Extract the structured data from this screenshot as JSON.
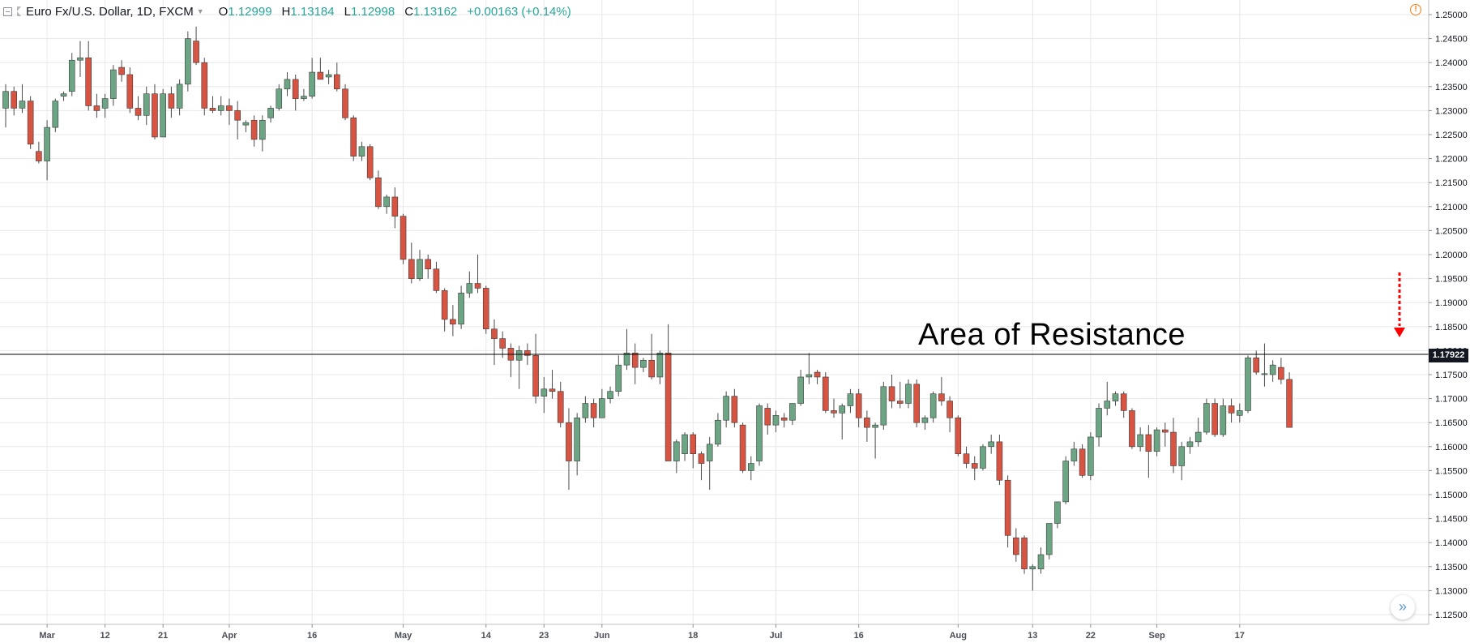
{
  "header": {
    "title": "Euro Fx/U.S. Dollar, 1D, FXCM",
    "open_key": "O",
    "open_val": "1.12999",
    "high_key": "H",
    "high_val": "1.13184",
    "low_key": "L",
    "low_val": "1.12998",
    "close_key": "C",
    "close_val": "1.13162",
    "change": "+0.00163 (+0.14%)"
  },
  "colors": {
    "up": "#6ba583",
    "down": "#d75442",
    "wick": "#4a4a4a",
    "grid": "#e8e8e8",
    "annotation_arrow": "#ff0000"
  },
  "chart_data": {
    "type": "candlestick",
    "title": "Euro Fx/U.S. Dollar, 1D, FXCM",
    "ylim": [
      1.125,
      1.25
    ],
    "y_ticks": [
      "1.25000",
      "1.24500",
      "1.24000",
      "1.23500",
      "1.23000",
      "1.22500",
      "1.22000",
      "1.21500",
      "1.21000",
      "1.20500",
      "1.20000",
      "1.19500",
      "1.19000",
      "1.18500",
      "1.18000",
      "1.17500",
      "1.17000",
      "1.16500",
      "1.16000",
      "1.15500",
      "1.15000",
      "1.14500",
      "1.14000",
      "1.13500",
      "1.13000",
      "1.12500"
    ],
    "x_ticks": [
      {
        "label": "Mar",
        "index": 5
      },
      {
        "label": "12",
        "index": 12
      },
      {
        "label": "21",
        "index": 19
      },
      {
        "label": "Apr",
        "index": 27
      },
      {
        "label": "16",
        "index": 37
      },
      {
        "label": "May",
        "index": 48
      },
      {
        "label": "14",
        "index": 58
      },
      {
        "label": "23",
        "index": 65
      },
      {
        "label": "Jun",
        "index": 72
      },
      {
        "label": "18",
        "index": 83
      },
      {
        "label": "Jul",
        "index": 93
      },
      {
        "label": "16",
        "index": 103
      },
      {
        "label": "Aug",
        "index": 115
      },
      {
        "label": "13",
        "index": 124
      },
      {
        "label": "22",
        "index": 131
      },
      {
        "label": "Sep",
        "index": 139
      },
      {
        "label": "17",
        "index": 149
      }
    ],
    "resistance_level": 1.17922,
    "resistance_label": "1.17922",
    "annotation": "Area of Resistance",
    "candles": [
      {
        "o": 1.2305,
        "h": 1.2355,
        "l": 1.2265,
        "c": 1.234
      },
      {
        "o": 1.234,
        "h": 1.235,
        "l": 1.229,
        "c": 1.2305
      },
      {
        "o": 1.2305,
        "h": 1.2355,
        "l": 1.2295,
        "c": 1.232
      },
      {
        "o": 1.232,
        "h": 1.233,
        "l": 1.222,
        "c": 1.223
      },
      {
        "o": 1.2215,
        "h": 1.2235,
        "l": 1.219,
        "c": 1.2195
      },
      {
        "o": 1.2195,
        "h": 1.228,
        "l": 1.2155,
        "c": 1.2265
      },
      {
        "o": 1.2265,
        "h": 1.2325,
        "l": 1.2255,
        "c": 1.232
      },
      {
        "o": 1.233,
        "h": 1.234,
        "l": 1.232,
        "c": 1.2335
      },
      {
        "o": 1.234,
        "h": 1.242,
        "l": 1.233,
        "c": 1.2405
      },
      {
        "o": 1.2405,
        "h": 1.2445,
        "l": 1.237,
        "c": 1.241
      },
      {
        "o": 1.241,
        "h": 1.2445,
        "l": 1.23,
        "c": 1.231
      },
      {
        "o": 1.231,
        "h": 1.2335,
        "l": 1.2285,
        "c": 1.23
      },
      {
        "o": 1.2305,
        "h": 1.2335,
        "l": 1.2285,
        "c": 1.2325
      },
      {
        "o": 1.2325,
        "h": 1.2395,
        "l": 1.231,
        "c": 1.2385
      },
      {
        "o": 1.239,
        "h": 1.2405,
        "l": 1.236,
        "c": 1.2375
      },
      {
        "o": 1.2375,
        "h": 1.239,
        "l": 1.2295,
        "c": 1.2305
      },
      {
        "o": 1.2305,
        "h": 1.233,
        "l": 1.228,
        "c": 1.229
      },
      {
        "o": 1.229,
        "h": 1.235,
        "l": 1.227,
        "c": 1.2335
      },
      {
        "o": 1.2335,
        "h": 1.2355,
        "l": 1.224,
        "c": 1.2245
      },
      {
        "o": 1.2245,
        "h": 1.2345,
        "l": 1.2245,
        "c": 1.2335
      },
      {
        "o": 1.2335,
        "h": 1.235,
        "l": 1.2285,
        "c": 1.2305
      },
      {
        "o": 1.2305,
        "h": 1.2365,
        "l": 1.229,
        "c": 1.2355
      },
      {
        "o": 1.2355,
        "h": 1.2465,
        "l": 1.234,
        "c": 1.245
      },
      {
        "o": 1.2445,
        "h": 1.2475,
        "l": 1.2395,
        "c": 1.24
      },
      {
        "o": 1.24,
        "h": 1.241,
        "l": 1.229,
        "c": 1.2305
      },
      {
        "o": 1.2305,
        "h": 1.233,
        "l": 1.2295,
        "c": 1.23
      },
      {
        "o": 1.23,
        "h": 1.233,
        "l": 1.229,
        "c": 1.231
      },
      {
        "o": 1.231,
        "h": 1.2325,
        "l": 1.227,
        "c": 1.23
      },
      {
        "o": 1.23,
        "h": 1.232,
        "l": 1.224,
        "c": 1.228
      },
      {
        "o": 1.227,
        "h": 1.228,
        "l": 1.2255,
        "c": 1.2275
      },
      {
        "o": 1.228,
        "h": 1.229,
        "l": 1.2225,
        "c": 1.224
      },
      {
        "o": 1.224,
        "h": 1.229,
        "l": 1.2215,
        "c": 1.228
      },
      {
        "o": 1.2285,
        "h": 1.231,
        "l": 1.2275,
        "c": 1.2305
      },
      {
        "o": 1.2305,
        "h": 1.2355,
        "l": 1.23,
        "c": 1.2345
      },
      {
        "o": 1.2345,
        "h": 1.238,
        "l": 1.233,
        "c": 1.2365
      },
      {
        "o": 1.2365,
        "h": 1.2375,
        "l": 1.23,
        "c": 1.2325
      },
      {
        "o": 1.2325,
        "h": 1.2345,
        "l": 1.232,
        "c": 1.233
      },
      {
        "o": 1.233,
        "h": 1.241,
        "l": 1.2325,
        "c": 1.238
      },
      {
        "o": 1.238,
        "h": 1.241,
        "l": 1.237,
        "c": 1.2365
      },
      {
        "o": 1.237,
        "h": 1.2385,
        "l": 1.2355,
        "c": 1.2375
      },
      {
        "o": 1.2375,
        "h": 1.24,
        "l": 1.234,
        "c": 1.2345
      },
      {
        "o": 1.2345,
        "h": 1.2355,
        "l": 1.228,
        "c": 1.2285
      },
      {
        "o": 1.2285,
        "h": 1.229,
        "l": 1.2195,
        "c": 1.2205
      },
      {
        "o": 1.2205,
        "h": 1.2235,
        "l": 1.2195,
        "c": 1.2225
      },
      {
        "o": 1.2225,
        "h": 1.223,
        "l": 1.2155,
        "c": 1.216
      },
      {
        "o": 1.216,
        "h": 1.2175,
        "l": 1.2095,
        "c": 1.21
      },
      {
        "o": 1.21,
        "h": 1.2125,
        "l": 1.2085,
        "c": 1.212
      },
      {
        "o": 1.212,
        "h": 1.214,
        "l": 1.2055,
        "c": 1.208
      },
      {
        "o": 1.208,
        "h": 1.2085,
        "l": 1.198,
        "c": 1.199
      },
      {
        "o": 1.199,
        "h": 1.2025,
        "l": 1.194,
        "c": 1.195
      },
      {
        "o": 1.195,
        "h": 1.201,
        "l": 1.1945,
        "c": 1.199
      },
      {
        "o": 1.199,
        "h": 1.2,
        "l": 1.195,
        "c": 1.197
      },
      {
        "o": 1.197,
        "h": 1.1985,
        "l": 1.192,
        "c": 1.1925
      },
      {
        "o": 1.1925,
        "h": 1.193,
        "l": 1.184,
        "c": 1.1865
      },
      {
        "o": 1.1865,
        "h": 1.1895,
        "l": 1.183,
        "c": 1.1855
      },
      {
        "o": 1.1855,
        "h": 1.1935,
        "l": 1.1845,
        "c": 1.192
      },
      {
        "o": 1.192,
        "h": 1.1965,
        "l": 1.191,
        "c": 1.194
      },
      {
        "o": 1.194,
        "h": 1.2,
        "l": 1.192,
        "c": 1.193
      },
      {
        "o": 1.193,
        "h": 1.1935,
        "l": 1.1835,
        "c": 1.1845
      },
      {
        "o": 1.1845,
        "h": 1.1865,
        "l": 1.177,
        "c": 1.1825
      },
      {
        "o": 1.1825,
        "h": 1.184,
        "l": 1.1785,
        "c": 1.1805
      },
      {
        "o": 1.1805,
        "h": 1.1815,
        "l": 1.1745,
        "c": 1.178
      },
      {
        "o": 1.178,
        "h": 1.181,
        "l": 1.172,
        "c": 1.18
      },
      {
        "o": 1.18,
        "h": 1.1815,
        "l": 1.177,
        "c": 1.179
      },
      {
        "o": 1.179,
        "h": 1.1835,
        "l": 1.169,
        "c": 1.1705
      },
      {
        "o": 1.1705,
        "h": 1.1745,
        "l": 1.167,
        "c": 1.172
      },
      {
        "o": 1.172,
        "h": 1.176,
        "l": 1.17,
        "c": 1.1715
      },
      {
        "o": 1.1715,
        "h": 1.1735,
        "l": 1.164,
        "c": 1.165
      },
      {
        "o": 1.165,
        "h": 1.168,
        "l": 1.151,
        "c": 1.157
      },
      {
        "o": 1.157,
        "h": 1.167,
        "l": 1.154,
        "c": 1.166
      },
      {
        "o": 1.166,
        "h": 1.1705,
        "l": 1.165,
        "c": 1.169
      },
      {
        "o": 1.169,
        "h": 1.17,
        "l": 1.164,
        "c": 1.166
      },
      {
        "o": 1.166,
        "h": 1.172,
        "l": 1.166,
        "c": 1.17
      },
      {
        "o": 1.17,
        "h": 1.1725,
        "l": 1.169,
        "c": 1.1715
      },
      {
        "o": 1.1715,
        "h": 1.179,
        "l": 1.1705,
        "c": 1.177
      },
      {
        "o": 1.177,
        "h": 1.1845,
        "l": 1.176,
        "c": 1.1795
      },
      {
        "o": 1.1795,
        "h": 1.1815,
        "l": 1.173,
        "c": 1.1765
      },
      {
        "o": 1.1765,
        "h": 1.1785,
        "l": 1.1755,
        "c": 1.178
      },
      {
        "o": 1.178,
        "h": 1.1835,
        "l": 1.174,
        "c": 1.1745
      },
      {
        "o": 1.1745,
        "h": 1.18,
        "l": 1.173,
        "c": 1.1795
      },
      {
        "o": 1.1795,
        "h": 1.1855,
        "l": 1.157,
        "c": 1.157
      },
      {
        "o": 1.157,
        "h": 1.1615,
        "l": 1.1545,
        "c": 1.161
      },
      {
        "o": 1.1585,
        "h": 1.163,
        "l": 1.157,
        "c": 1.1625
      },
      {
        "o": 1.1625,
        "h": 1.163,
        "l": 1.1555,
        "c": 1.1585
      },
      {
        "o": 1.1585,
        "h": 1.159,
        "l": 1.153,
        "c": 1.1565
      },
      {
        "o": 1.157,
        "h": 1.162,
        "l": 1.151,
        "c": 1.1605
      },
      {
        "o": 1.1605,
        "h": 1.167,
        "l": 1.16,
        "c": 1.1655
      },
      {
        "o": 1.1655,
        "h": 1.1715,
        "l": 1.164,
        "c": 1.1705
      },
      {
        "o": 1.1705,
        "h": 1.172,
        "l": 1.164,
        "c": 1.165
      },
      {
        "o": 1.1645,
        "h": 1.165,
        "l": 1.1545,
        "c": 1.155
      },
      {
        "o": 1.155,
        "h": 1.158,
        "l": 1.153,
        "c": 1.1565
      },
      {
        "o": 1.157,
        "h": 1.169,
        "l": 1.156,
        "c": 1.1685
      },
      {
        "o": 1.168,
        "h": 1.169,
        "l": 1.1625,
        "c": 1.1645
      },
      {
        "o": 1.1645,
        "h": 1.1675,
        "l": 1.163,
        "c": 1.1665
      },
      {
        "o": 1.166,
        "h": 1.167,
        "l": 1.164,
        "c": 1.1655
      },
      {
        "o": 1.1655,
        "h": 1.169,
        "l": 1.1645,
        "c": 1.169
      },
      {
        "o": 1.169,
        "h": 1.176,
        "l": 1.1685,
        "c": 1.1745
      },
      {
        "o": 1.1745,
        "h": 1.1795,
        "l": 1.173,
        "c": 1.175
      },
      {
        "o": 1.1755,
        "h": 1.176,
        "l": 1.173,
        "c": 1.1745
      },
      {
        "o": 1.1745,
        "h": 1.1755,
        "l": 1.167,
        "c": 1.1675
      },
      {
        "o": 1.1675,
        "h": 1.17,
        "l": 1.166,
        "c": 1.167
      },
      {
        "o": 1.167,
        "h": 1.169,
        "l": 1.1615,
        "c": 1.1685
      },
      {
        "o": 1.1685,
        "h": 1.172,
        "l": 1.167,
        "c": 1.171
      },
      {
        "o": 1.171,
        "h": 1.172,
        "l": 1.164,
        "c": 1.166
      },
      {
        "o": 1.166,
        "h": 1.1675,
        "l": 1.161,
        "c": 1.164
      },
      {
        "o": 1.164,
        "h": 1.165,
        "l": 1.1575,
        "c": 1.1645
      },
      {
        "o": 1.1645,
        "h": 1.1735,
        "l": 1.1635,
        "c": 1.1725
      },
      {
        "o": 1.1725,
        "h": 1.175,
        "l": 1.168,
        "c": 1.1695
      },
      {
        "o": 1.1695,
        "h": 1.1735,
        "l": 1.168,
        "c": 1.169
      },
      {
        "o": 1.169,
        "h": 1.174,
        "l": 1.168,
        "c": 1.173
      },
      {
        "o": 1.173,
        "h": 1.174,
        "l": 1.164,
        "c": 1.165
      },
      {
        "o": 1.165,
        "h": 1.1665,
        "l": 1.1635,
        "c": 1.166
      },
      {
        "o": 1.166,
        "h": 1.1715,
        "l": 1.165,
        "c": 1.171
      },
      {
        "o": 1.171,
        "h": 1.1745,
        "l": 1.1685,
        "c": 1.1695
      },
      {
        "o": 1.1695,
        "h": 1.1705,
        "l": 1.163,
        "c": 1.166
      },
      {
        "o": 1.166,
        "h": 1.1665,
        "l": 1.158,
        "c": 1.1585
      },
      {
        "o": 1.1585,
        "h": 1.16,
        "l": 1.1555,
        "c": 1.1565
      },
      {
        "o": 1.1565,
        "h": 1.158,
        "l": 1.153,
        "c": 1.1555
      },
      {
        "o": 1.1555,
        "h": 1.1605,
        "l": 1.155,
        "c": 1.16
      },
      {
        "o": 1.16,
        "h": 1.1625,
        "l": 1.1585,
        "c": 1.161
      },
      {
        "o": 1.161,
        "h": 1.1625,
        "l": 1.152,
        "c": 1.153
      },
      {
        "o": 1.153,
        "h": 1.154,
        "l": 1.139,
        "c": 1.1415
      },
      {
        "o": 1.141,
        "h": 1.143,
        "l": 1.136,
        "c": 1.1375
      },
      {
        "o": 1.141,
        "h": 1.1415,
        "l": 1.1335,
        "c": 1.1345
      },
      {
        "o": 1.1345,
        "h": 1.1355,
        "l": 1.13,
        "c": 1.135
      },
      {
        "o": 1.1345,
        "h": 1.139,
        "l": 1.1335,
        "c": 1.1375
      },
      {
        "o": 1.1375,
        "h": 1.144,
        "l": 1.1365,
        "c": 1.144
      },
      {
        "o": 1.144,
        "h": 1.1485,
        "l": 1.143,
        "c": 1.1485
      },
      {
        "o": 1.1485,
        "h": 1.158,
        "l": 1.148,
        "c": 1.157
      },
      {
        "o": 1.157,
        "h": 1.161,
        "l": 1.156,
        "c": 1.1595
      },
      {
        "o": 1.1595,
        "h": 1.1605,
        "l": 1.1535,
        "c": 1.154
      },
      {
        "o": 1.154,
        "h": 1.163,
        "l": 1.153,
        "c": 1.162
      },
      {
        "o": 1.162,
        "h": 1.169,
        "l": 1.16,
        "c": 1.168
      },
      {
        "o": 1.168,
        "h": 1.1735,
        "l": 1.1665,
        "c": 1.1695
      },
      {
        "o": 1.1695,
        "h": 1.1715,
        "l": 1.1685,
        "c": 1.171
      },
      {
        "o": 1.171,
        "h": 1.1715,
        "l": 1.166,
        "c": 1.1675
      },
      {
        "o": 1.1675,
        "h": 1.168,
        "l": 1.1595,
        "c": 1.16
      },
      {
        "o": 1.16,
        "h": 1.164,
        "l": 1.159,
        "c": 1.1625
      },
      {
        "o": 1.1625,
        "h": 1.1645,
        "l": 1.1535,
        "c": 1.159
      },
      {
        "o": 1.159,
        "h": 1.164,
        "l": 1.158,
        "c": 1.1635
      },
      {
        "o": 1.1635,
        "h": 1.165,
        "l": 1.16,
        "c": 1.163
      },
      {
        "o": 1.163,
        "h": 1.166,
        "l": 1.1545,
        "c": 1.156
      },
      {
        "o": 1.156,
        "h": 1.161,
        "l": 1.153,
        "c": 1.16
      },
      {
        "o": 1.16,
        "h": 1.162,
        "l": 1.1585,
        "c": 1.161
      },
      {
        "o": 1.161,
        "h": 1.166,
        "l": 1.16,
        "c": 1.163
      },
      {
        "o": 1.163,
        "h": 1.17,
        "l": 1.1625,
        "c": 1.169
      },
      {
        "o": 1.169,
        "h": 1.17,
        "l": 1.162,
        "c": 1.1625
      },
      {
        "o": 1.1625,
        "h": 1.17,
        "l": 1.162,
        "c": 1.1685
      },
      {
        "o": 1.1685,
        "h": 1.17,
        "l": 1.165,
        "c": 1.167
      },
      {
        "o": 1.1665,
        "h": 1.169,
        "l": 1.165,
        "c": 1.1675
      },
      {
        "o": 1.1675,
        "h": 1.179,
        "l": 1.167,
        "c": 1.1785
      },
      {
        "o": 1.1785,
        "h": 1.18,
        "l": 1.175,
        "c": 1.1755
      },
      {
        "o": 1.175,
        "h": 1.1815,
        "l": 1.1725,
        "c": 1.1752
      },
      {
        "o": 1.175,
        "h": 1.178,
        "l": 1.1735,
        "c": 1.177
      },
      {
        "o": 1.1765,
        "h": 1.1785,
        "l": 1.173,
        "c": 1.174
      },
      {
        "o": 1.174,
        "h": 1.1755,
        "l": 1.165,
        "c": 1.164
      }
    ]
  }
}
